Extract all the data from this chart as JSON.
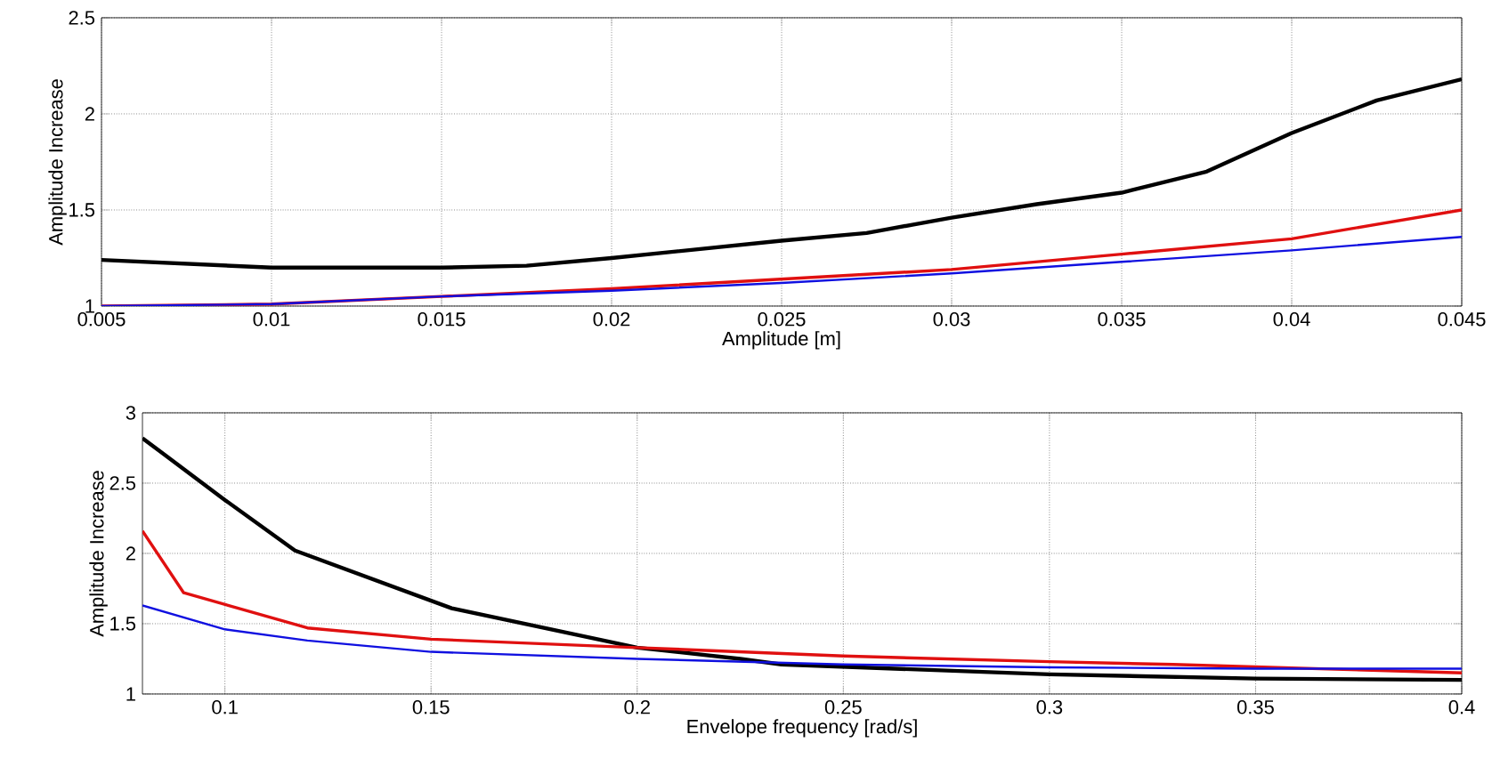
{
  "chart_data": [
    {
      "type": "line",
      "xlabel": "Amplitude [m]",
      "ylabel": "Amplitude Increase",
      "xlim": [
        0.005,
        0.045
      ],
      "ylim": [
        1,
        2.5
      ],
      "xticks": [
        0.005,
        0.01,
        0.015,
        0.02,
        0.025,
        0.03,
        0.035,
        0.04,
        0.045
      ],
      "yticks": [
        1,
        1.5,
        2,
        2.5
      ],
      "grid": true,
      "series": [
        {
          "color": "#000000",
          "x": [
            0.005,
            0.0075,
            0.01,
            0.015,
            0.0175,
            0.02,
            0.025,
            0.0275,
            0.03,
            0.0325,
            0.035,
            0.0375,
            0.04,
            0.0425,
            0.045
          ],
          "values": [
            1.24,
            1.22,
            1.2,
            1.2,
            1.21,
            1.25,
            1.34,
            1.38,
            1.46,
            1.53,
            1.59,
            1.7,
            1.9,
            2.07,
            2.18
          ]
        },
        {
          "color": "#e01010",
          "x": [
            0.005,
            0.01,
            0.015,
            0.02,
            0.025,
            0.03,
            0.035,
            0.04,
            0.045
          ],
          "values": [
            1.0,
            1.01,
            1.05,
            1.09,
            1.14,
            1.19,
            1.27,
            1.35,
            1.5
          ]
        },
        {
          "color": "#1010e0",
          "x": [
            0.005,
            0.01,
            0.015,
            0.02,
            0.025,
            0.03,
            0.035,
            0.04,
            0.045
          ],
          "values": [
            1.0,
            1.01,
            1.05,
            1.08,
            1.12,
            1.17,
            1.23,
            1.29,
            1.36
          ]
        }
      ]
    },
    {
      "type": "line",
      "xlabel": "Envelope frequency [rad/s]",
      "ylabel": "Amplitude Increase",
      "xlim": [
        0.08,
        0.4
      ],
      "ylim": [
        1,
        3
      ],
      "xticks": [
        0.1,
        0.15,
        0.2,
        0.25,
        0.3,
        0.35,
        0.4
      ],
      "yticks": [
        1,
        1.5,
        2,
        2.5,
        3
      ],
      "grid": true,
      "series": [
        {
          "color": "#000000",
          "x": [
            0.08,
            0.1,
            0.117,
            0.155,
            0.2,
            0.225,
            0.235,
            0.3,
            0.35,
            0.4
          ],
          "values": [
            2.82,
            2.38,
            2.02,
            1.61,
            1.33,
            1.25,
            1.21,
            1.14,
            1.11,
            1.1
          ]
        },
        {
          "color": "#e01010",
          "x": [
            0.08,
            0.09,
            0.12,
            0.15,
            0.2,
            0.25,
            0.3,
            0.33,
            0.4
          ],
          "values": [
            2.16,
            1.72,
            1.47,
            1.39,
            1.33,
            1.27,
            1.23,
            1.21,
            1.15
          ]
        },
        {
          "color": "#1010e0",
          "x": [
            0.08,
            0.1,
            0.12,
            0.15,
            0.2,
            0.25,
            0.3,
            0.35,
            0.4
          ],
          "values": [
            1.63,
            1.46,
            1.38,
            1.3,
            1.25,
            1.21,
            1.19,
            1.18,
            1.18
          ]
        }
      ]
    }
  ]
}
